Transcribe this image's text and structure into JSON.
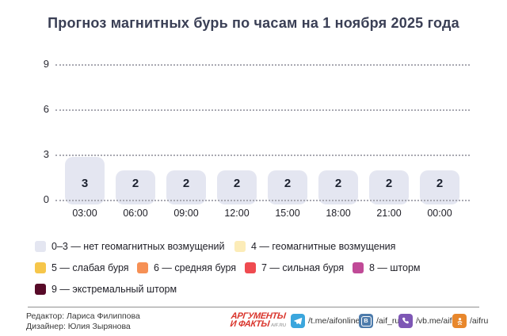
{
  "title": "Прогноз магнитных бурь по часам на 1 ноября 2025 года",
  "chart_data": {
    "type": "bar",
    "title": "Прогноз магнитных бурь по часам на 1 ноября 2025 года",
    "categories": [
      "03:00",
      "06:00",
      "09:00",
      "12:00",
      "15:00",
      "18:00",
      "21:00",
      "00:00"
    ],
    "values": [
      3,
      2,
      2,
      2,
      2,
      2,
      2,
      2
    ],
    "xlabel": "",
    "ylabel": "",
    "ylim": [
      0,
      9
    ],
    "yticks": [
      0,
      3,
      6,
      9
    ],
    "grid": "horizontal-dotted",
    "bar_color": "#e4e6f1",
    "bar_label_color": "#1c2230",
    "legend_position": "bottom"
  },
  "legend": {
    "items": [
      {
        "label": "0–3 — нет геомагнитных возмущений",
        "color": "#e4e6f1"
      },
      {
        "label": "4 — геомагнитные возмущения",
        "color": "#fcecb8"
      },
      {
        "label": "5 — слабая буря",
        "color": "#f6c64a"
      },
      {
        "label": "6 — средняя буря",
        "color": "#f69055"
      },
      {
        "label": "7 — сильная буря",
        "color": "#ef4b50"
      },
      {
        "label": "8 — шторм",
        "color": "#c04a97"
      },
      {
        "label": "9 — экстремальный шторм",
        "color": "#570a28"
      }
    ]
  },
  "footer": {
    "editor": "Редактор: Лариса Филиппова",
    "designer": "Дизайнер: Юлия Зырянова",
    "logo_line1": "АРГУМЕНТЫ",
    "logo_line2": "И ФАКТЫ",
    "logo_suffix": "AIF.RU",
    "socials": [
      {
        "icon": "telegram-icon",
        "handle": "/t.me/aifonline",
        "color": "#3ba6dd"
      },
      {
        "icon": "vk-icon",
        "handle": "/aif_ru",
        "color": "#4d7bab"
      },
      {
        "icon": "viber-icon",
        "handle": "/vb.me/aif",
        "color": "#7e57b5"
      },
      {
        "icon": "ok-icon",
        "handle": "/aifru",
        "color": "#e8872c"
      }
    ]
  }
}
